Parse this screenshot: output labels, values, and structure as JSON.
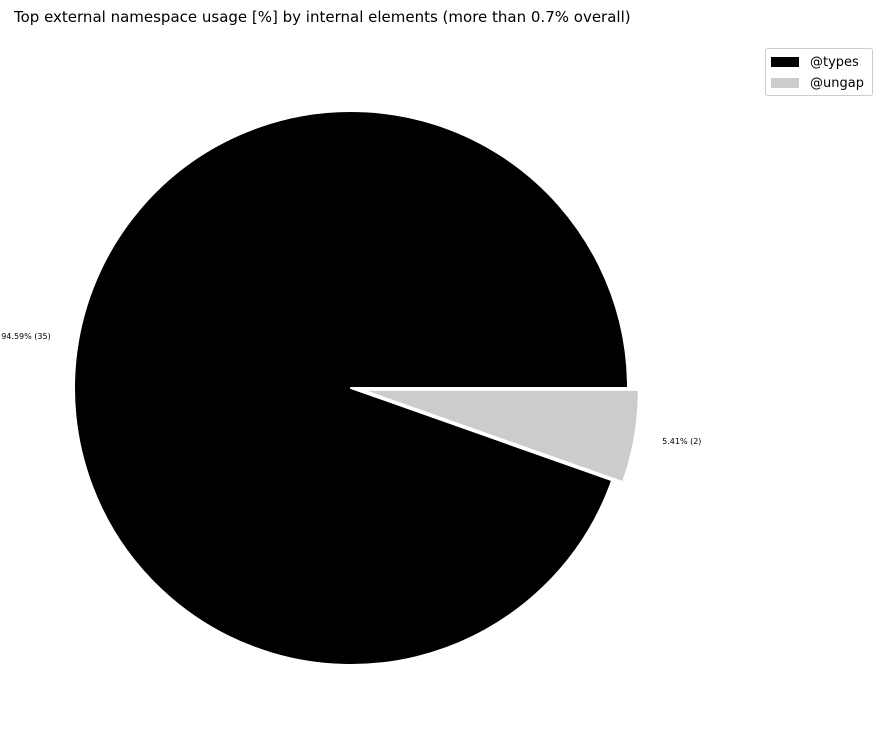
{
  "chart_data": {
    "type": "pie",
    "title": "Top external namespace usage [%] by internal elements (more than 0.7% overall)",
    "slices": [
      {
        "name": "@types",
        "percent": 94.59,
        "count": 35,
        "label": "94.59% (35)",
        "color": "#000000",
        "exploded": false
      },
      {
        "name": "@ungap",
        "percent": 5.41,
        "count": 2,
        "label": "5.41% (2)",
        "color": "#cccccc",
        "exploded": true
      }
    ],
    "legend": {
      "placement": "top-right",
      "entries": [
        "@types",
        "@ungap"
      ]
    }
  }
}
